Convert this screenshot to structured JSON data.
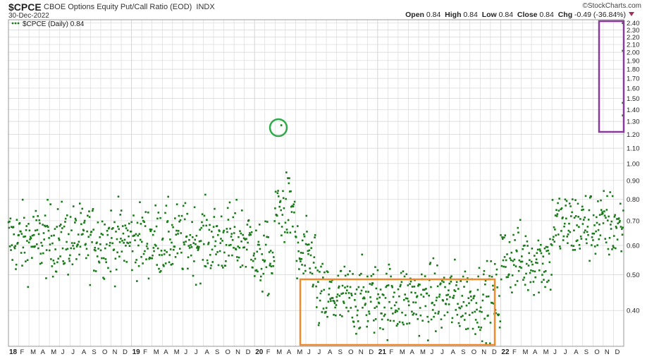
{
  "header": {
    "symbol": "$CPCE",
    "description": "CBOE Options Equity Put/Call Ratio (EOD)",
    "exchange": "INDX",
    "date": "30-Dec-2022",
    "logo": "©StockCharts.com",
    "open_label": "Open",
    "open": "0.84",
    "high_label": "High",
    "high": "0.84",
    "low_label": "Low",
    "low": "0.84",
    "close_label": "Close",
    "close": "0.84",
    "chg_label": "Chg",
    "chg": "-0.49 (-36.84%)"
  },
  "legend": {
    "text": "$CPCE (Daily) 0.84"
  },
  "colors": {
    "points": "#1a7a1a",
    "circle": "#2eaa4a",
    "orange_box": "#f08a2e",
    "purple_box": "#8a3a9a",
    "grid": "#d6d6d6"
  },
  "chart_data": {
    "type": "scatter",
    "title": "CBOE Options Equity Put/Call Ratio (EOD)",
    "series_name": "$CPCE (Daily)",
    "y_scale": "log",
    "ylim": [
      0.32,
      2.45
    ],
    "y_ticks": [
      "2.40",
      "2.30",
      "2.20",
      "2.10",
      "2.00",
      "1.90",
      "1.80",
      "1.70",
      "1.60",
      "1.50",
      "1.40",
      "1.30",
      "1.20",
      "1.10",
      "1.00",
      "0.90",
      "0.80",
      "0.70",
      "0.60",
      "0.50",
      "0.40"
    ],
    "x_labels": [
      "18",
      "F",
      "M",
      "A",
      "M",
      "J",
      "J",
      "A",
      "S",
      "O",
      "N",
      "D",
      "19",
      "F",
      "M",
      "A",
      "M",
      "J",
      "J",
      "A",
      "S",
      "O",
      "N",
      "D",
      "20",
      "F",
      "M",
      "A",
      "M",
      "J",
      "J",
      "A",
      "S",
      "O",
      "N",
      "D",
      "21",
      "F",
      "M",
      "A",
      "M",
      "J",
      "J",
      "A",
      "S",
      "O",
      "N",
      "D",
      "22",
      "F",
      "M",
      "A",
      "M",
      "J",
      "J",
      "A",
      "S",
      "O",
      "N",
      "D"
    ],
    "year_labels": [
      "18",
      "19",
      "20",
      "21",
      "22"
    ],
    "regime_means": [
      {
        "from": "2018-01",
        "to": "2019-12",
        "mean": 0.62
      },
      {
        "from": "2020-01",
        "to": "2020-02",
        "mean": 0.55
      },
      {
        "from": "2020-03",
        "to": "2020-04",
        "mean": 0.75
      },
      {
        "from": "2020-05",
        "to": "2020-06",
        "mean": 0.55
      },
      {
        "from": "2020-07",
        "to": "2021-12",
        "mean": 0.43
      },
      {
        "from": "2022-01",
        "to": "2022-05",
        "mean": 0.55
      },
      {
        "from": "2022-06",
        "to": "2022-12",
        "mean": 0.68
      }
    ],
    "highlights": [
      {
        "date": "2020-03",
        "value": 1.27,
        "marker": "circle"
      },
      {
        "date": "2022-12",
        "value": 2.4
      },
      {
        "date": "2022-12",
        "value": 2.02
      },
      {
        "date": "2022-12",
        "value": 1.46
      },
      {
        "date": "2022-12",
        "value": 1.35
      }
    ]
  }
}
